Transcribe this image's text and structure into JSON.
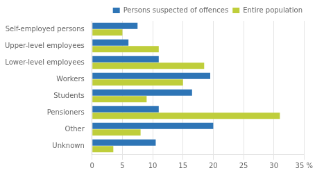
{
  "chart_data": {
    "type": "bar",
    "orientation": "horizontal",
    "categories": [
      "Unknown",
      "Other",
      "Pensioners",
      "Students",
      "Workers",
      "Lower-level employees",
      "Upper-level employees",
      "Self-employed persons"
    ],
    "series": [
      {
        "name": "Persons suspected of offences",
        "color": "#2E75B6",
        "values": [
          10.5,
          20.0,
          11.0,
          16.5,
          19.5,
          11.0,
          6.0,
          7.5
        ]
      },
      {
        "name": "Entire population",
        "color": "#BFCE3B",
        "values": [
          3.5,
          8.0,
          31.0,
          9.0,
          15.0,
          18.5,
          11.0,
          5.0
        ]
      }
    ],
    "xlim": [
      0,
      35
    ],
    "xticks": [
      0,
      5,
      10,
      15,
      20,
      25,
      30,
      {
        "value": 35,
        "label": "35 %"
      }
    ],
    "grid": true,
    "legend": "upper right"
  }
}
